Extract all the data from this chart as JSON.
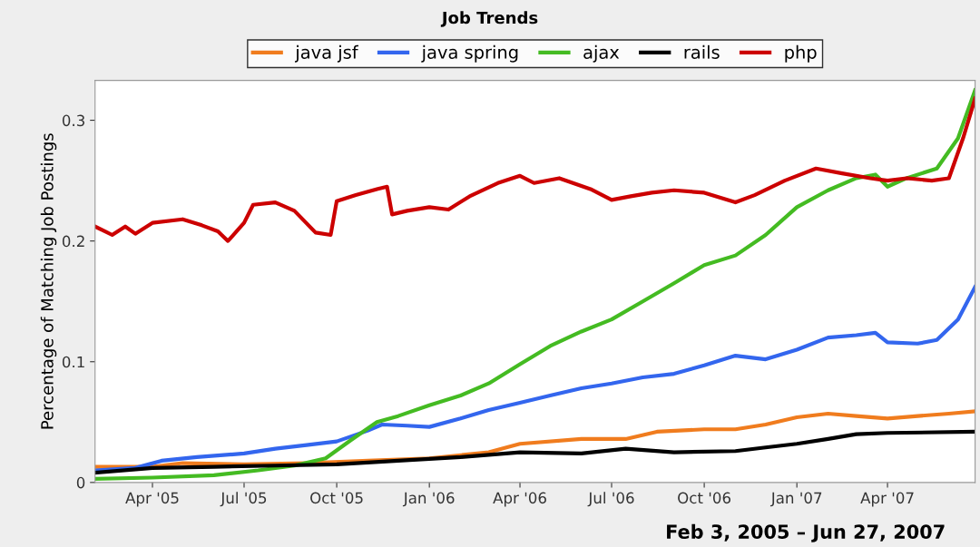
{
  "chart_data": {
    "type": "line",
    "title": "Job Trends",
    "ylabel": "Percentage of Matching Job Postings",
    "annotations": [
      "Feb 3, 2005 – Jun 27, 2007"
    ],
    "xlim": [
      "2005-02-03",
      "2007-06-27"
    ],
    "ylim": [
      0,
      0.333
    ],
    "xticks": [
      {
        "value": "2005-04-01",
        "label": "Apr '05"
      },
      {
        "value": "2005-07-01",
        "label": "Jul '05"
      },
      {
        "value": "2005-10-01",
        "label": "Oct '05"
      },
      {
        "value": "2006-01-01",
        "label": "Jan '06"
      },
      {
        "value": "2006-04-01",
        "label": "Apr '06"
      },
      {
        "value": "2006-07-01",
        "label": "Jul '06"
      },
      {
        "value": "2006-10-01",
        "label": "Oct '06"
      },
      {
        "value": "2007-01-01",
        "label": "Jan '07"
      },
      {
        "value": "2007-04-01",
        "label": "Apr '07"
      }
    ],
    "yticks": [
      0,
      0.1,
      0.2,
      0.3
    ],
    "grid": false,
    "legend": "top",
    "marker": "none",
    "line_style": "solid",
    "series": [
      {
        "name": "java jsf",
        "color": "#f07c1e",
        "x": [
          "2005-02-03",
          "2005-04-01",
          "2005-05-01",
          "2005-07-01",
          "2005-09-01",
          "2005-11-01",
          "2006-01-01",
          "2006-03-01",
          "2006-04-01",
          "2006-06-01",
          "2006-07-15",
          "2006-08-15",
          "2006-10-01",
          "2006-11-01",
          "2006-12-01",
          "2007-01-01",
          "2007-02-01",
          "2007-03-01",
          "2007-04-01",
          "2007-05-01",
          "2007-06-01",
          "2007-06-27"
        ],
        "values": [
          0.013,
          0.013,
          0.016,
          0.015,
          0.016,
          0.018,
          0.02,
          0.025,
          0.032,
          0.036,
          0.036,
          0.042,
          0.044,
          0.044,
          0.048,
          0.054,
          0.057,
          0.055,
          0.053,
          0.055,
          0.057,
          0.059
        ]
      },
      {
        "name": "java spring",
        "color": "#3366ee",
        "x": [
          "2005-02-03",
          "2005-03-15",
          "2005-04-10",
          "2005-05-15",
          "2005-07-01",
          "2005-08-01",
          "2005-09-01",
          "2005-10-01",
          "2005-11-01",
          "2005-11-15",
          "2005-12-10",
          "2006-01-01",
          "2006-02-01",
          "2006-03-01",
          "2006-04-01",
          "2006-05-01",
          "2006-06-01",
          "2006-07-01",
          "2006-08-01",
          "2006-09-01",
          "2006-10-01",
          "2006-11-01",
          "2006-12-01",
          "2007-01-01",
          "2007-02-01",
          "2007-03-01",
          "2007-03-20",
          "2007-04-01",
          "2007-05-01",
          "2007-05-20",
          "2007-06-10",
          "2007-06-27"
        ],
        "values": [
          0.01,
          0.012,
          0.018,
          0.021,
          0.024,
          0.028,
          0.031,
          0.034,
          0.043,
          0.048,
          0.047,
          0.046,
          0.053,
          0.06,
          0.066,
          0.072,
          0.078,
          0.082,
          0.087,
          0.09,
          0.097,
          0.105,
          0.102,
          0.11,
          0.12,
          0.122,
          0.124,
          0.116,
          0.115,
          0.118,
          0.135,
          0.162
        ]
      },
      {
        "name": "ajax",
        "color": "#44bb22",
        "x": [
          "2005-02-03",
          "2005-04-01",
          "2005-06-01",
          "2005-07-15",
          "2005-08-20",
          "2005-09-20",
          "2005-10-15",
          "2005-11-10",
          "2005-12-01",
          "2006-01-01",
          "2006-02-01",
          "2006-03-01",
          "2006-04-01",
          "2006-05-01",
          "2006-06-01",
          "2006-07-01",
          "2006-08-01",
          "2006-09-01",
          "2006-10-01",
          "2006-11-01",
          "2006-12-01",
          "2007-01-01",
          "2007-02-01",
          "2007-03-01",
          "2007-03-20",
          "2007-04-01",
          "2007-04-20",
          "2007-05-20",
          "2007-06-10",
          "2007-06-27"
        ],
        "values": [
          0.003,
          0.004,
          0.006,
          0.01,
          0.014,
          0.02,
          0.035,
          0.05,
          0.055,
          0.064,
          0.072,
          0.082,
          0.098,
          0.113,
          0.125,
          0.135,
          0.15,
          0.165,
          0.18,
          0.188,
          0.205,
          0.228,
          0.242,
          0.252,
          0.255,
          0.245,
          0.252,
          0.26,
          0.285,
          0.325
        ]
      },
      {
        "name": "rails",
        "color": "#000000",
        "x": [
          "2005-02-03",
          "2005-04-01",
          "2005-06-01",
          "2005-08-01",
          "2005-10-01",
          "2005-12-01",
          "2006-02-01",
          "2006-04-01",
          "2006-06-01",
          "2006-07-15",
          "2006-09-01",
          "2006-11-01",
          "2006-12-01",
          "2007-01-01",
          "2007-02-01",
          "2007-03-01",
          "2007-04-01",
          "2007-06-27"
        ],
        "values": [
          0.008,
          0.012,
          0.013,
          0.014,
          0.015,
          0.018,
          0.021,
          0.025,
          0.024,
          0.028,
          0.025,
          0.026,
          0.029,
          0.032,
          0.036,
          0.04,
          0.041,
          0.042
        ]
      },
      {
        "name": "php",
        "color": "#cc0000",
        "x": [
          "2005-02-03",
          "2005-02-20",
          "2005-03-05",
          "2005-03-15",
          "2005-04-01",
          "2005-05-01",
          "2005-05-20",
          "2005-06-05",
          "2005-06-15",
          "2005-07-01",
          "2005-07-10",
          "2005-08-01",
          "2005-08-20",
          "2005-09-10",
          "2005-09-25",
          "2005-10-01",
          "2005-10-20",
          "2005-11-10",
          "2005-11-20",
          "2005-11-25",
          "2005-12-10",
          "2006-01-01",
          "2006-01-20",
          "2006-02-10",
          "2006-03-10",
          "2006-04-01",
          "2006-04-15",
          "2006-05-10",
          "2006-06-10",
          "2006-07-01",
          "2006-07-20",
          "2006-08-10",
          "2006-09-01",
          "2006-10-01",
          "2006-11-01",
          "2006-11-20",
          "2006-12-20",
          "2007-01-20",
          "2007-02-15",
          "2007-03-15",
          "2007-04-01",
          "2007-04-20",
          "2007-05-15",
          "2007-06-01",
          "2007-06-15",
          "2007-06-27"
        ],
        "values": [
          0.212,
          0.205,
          0.212,
          0.206,
          0.215,
          0.218,
          0.213,
          0.208,
          0.2,
          0.215,
          0.23,
          0.232,
          0.225,
          0.207,
          0.205,
          0.233,
          0.238,
          0.243,
          0.245,
          0.222,
          0.225,
          0.228,
          0.226,
          0.237,
          0.248,
          0.254,
          0.248,
          0.252,
          0.243,
          0.234,
          0.237,
          0.24,
          0.242,
          0.24,
          0.232,
          0.238,
          0.25,
          0.26,
          0.256,
          0.252,
          0.25,
          0.252,
          0.25,
          0.252,
          0.285,
          0.318
        ]
      }
    ]
  }
}
